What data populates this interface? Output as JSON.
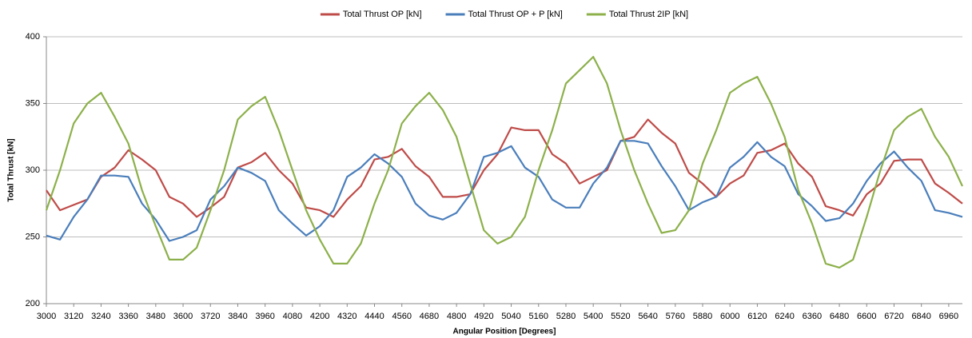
{
  "chart_data": {
    "type": "line",
    "x_label": "Angular Position [Degrees]",
    "y_label": "Total Thrust [kN]",
    "x": [
      3000,
      3060,
      3120,
      3180,
      3240,
      3300,
      3360,
      3420,
      3480,
      3540,
      3600,
      3660,
      3720,
      3780,
      3840,
      3900,
      3960,
      4020,
      4080,
      4140,
      4200,
      4260,
      4320,
      4380,
      4440,
      4500,
      4560,
      4620,
      4680,
      4740,
      4800,
      4860,
      4920,
      4980,
      5040,
      5100,
      5160,
      5220,
      5280,
      5340,
      5400,
      5460,
      5520,
      5580,
      5640,
      5700,
      5760,
      5820,
      5880,
      5940,
      6000,
      6060,
      6120,
      6180,
      6240,
      6300,
      6360,
      6420,
      6480,
      6540,
      6600,
      6660,
      6720,
      6780,
      6840,
      6900,
      6960,
      7020
    ],
    "series": [
      {
        "name": "Total Thrust OP [kN]",
        "color": "#be4b48",
        "values": [
          285,
          270,
          274,
          278,
          295,
          302,
          315,
          308,
          300,
          280,
          275,
          265,
          272,
          280,
          302,
          306,
          313,
          300,
          290,
          272,
          270,
          265,
          278,
          288,
          308,
          310,
          316,
          303,
          295,
          280,
          280,
          282,
          300,
          312,
          332,
          330,
          330,
          312,
          305,
          290,
          295,
          300,
          322,
          325,
          338,
          328,
          320,
          298,
          290,
          280,
          290,
          296,
          313,
          315,
          320,
          305,
          295,
          273,
          270,
          266,
          282,
          290,
          307,
          308,
          308,
          290,
          283,
          275
        ]
      },
      {
        "name": "Total Thrust OP + P [kN]",
        "color": "#4a7ebb",
        "values": [
          251,
          248,
          265,
          278,
          296,
          296,
          295,
          275,
          263,
          247,
          250,
          255,
          278,
          288,
          302,
          298,
          292,
          270,
          260,
          251,
          258,
          270,
          295,
          302,
          312,
          305,
          295,
          275,
          266,
          263,
          268,
          282,
          310,
          313,
          318,
          302,
          295,
          278,
          272,
          272,
          290,
          302,
          322,
          322,
          320,
          303,
          288,
          270,
          276,
          280,
          302,
          310,
          321,
          310,
          303,
          282,
          273,
          262,
          264,
          275,
          292,
          305,
          314,
          302,
          292,
          270,
          268,
          265
        ]
      },
      {
        "name": "Total Thrust 2IP [kN]",
        "color": "#8cb04a",
        "values": [
          270,
          300,
          335,
          350,
          358,
          340,
          320,
          285,
          258,
          233,
          233,
          242,
          270,
          300,
          338,
          348,
          355,
          330,
          300,
          270,
          248,
          230,
          230,
          245,
          275,
          300,
          335,
          348,
          358,
          345,
          325,
          290,
          255,
          245,
          250,
          265,
          300,
          330,
          365,
          375,
          385,
          365,
          330,
          300,
          275,
          253,
          255,
          270,
          305,
          330,
          358,
          365,
          370,
          350,
          325,
          285,
          260,
          230,
          227,
          233,
          265,
          300,
          330,
          340,
          346,
          325,
          310,
          288
        ]
      }
    ],
    "xlim": [
      3000,
      7020
    ],
    "xticks": [
      3000,
      3120,
      3240,
      3360,
      3480,
      3600,
      3720,
      3840,
      3960,
      4080,
      4200,
      4320,
      4440,
      4560,
      4680,
      4800,
      4920,
      5040,
      5160,
      5280,
      5400,
      5520,
      5640,
      5760,
      5880,
      6000,
      6120,
      6240,
      6360,
      6480,
      6600,
      6720,
      6840,
      6960
    ],
    "ylim": [
      200,
      400
    ],
    "yticks": [
      200,
      250,
      300,
      350,
      400
    ],
    "grid": true,
    "legend": "top"
  }
}
